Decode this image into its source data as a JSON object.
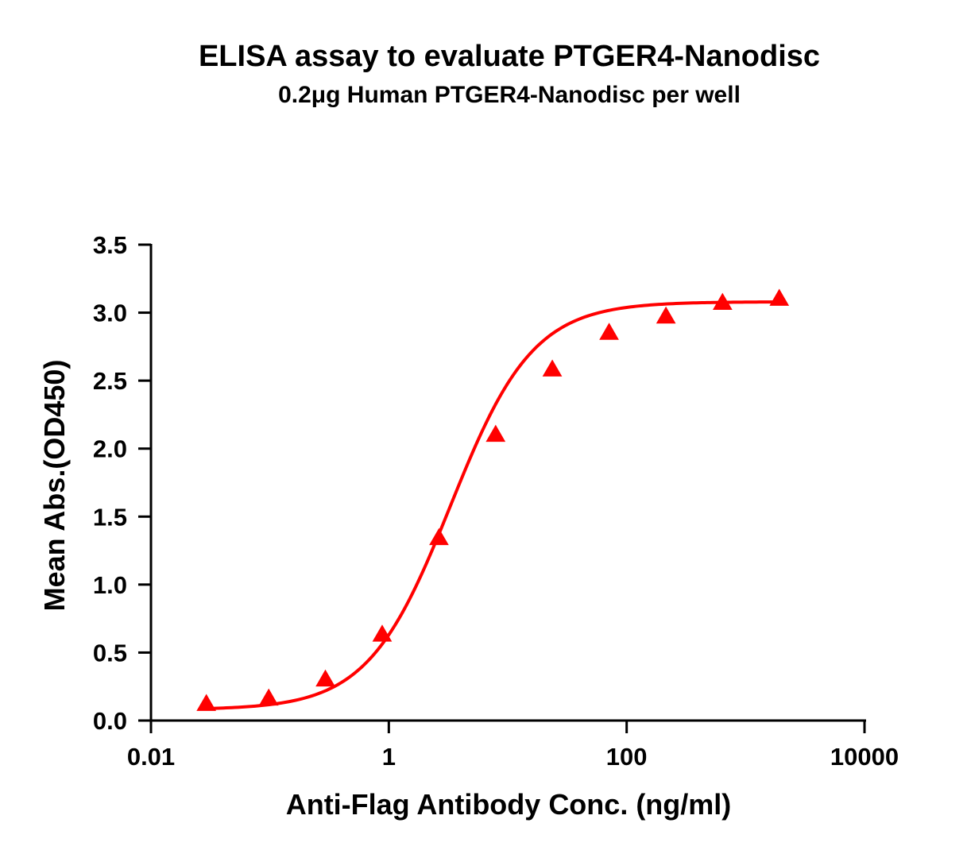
{
  "chart_data": {
    "type": "scatter",
    "title": "ELISA assay to evaluate PTGER4-Nanodisc",
    "subtitle": "0.2μg Human PTGER4-Nanodisc per well",
    "xlabel": "Anti-Flag Antibody Conc. (ng/ml)",
    "ylabel": "Mean Abs.(OD450)",
    "x_scale": "log",
    "xlim": [
      0.01,
      10000
    ],
    "ylim": [
      0,
      3.5
    ],
    "x_ticks": [
      0.01,
      1,
      100,
      10000
    ],
    "x_tick_labels": [
      "0.01",
      "1",
      "100",
      "10000"
    ],
    "y_ticks": [
      0,
      0.5,
      1,
      1.5,
      2,
      2.5,
      3,
      3.5
    ],
    "y_tick_labels": [
      "0.0",
      "0.5",
      "1.0",
      "1.5",
      "2.0",
      "2.5",
      "3.0",
      "3.5"
    ],
    "grid": false,
    "legend": "none",
    "series": [
      {
        "x": [
          0.0292,
          0.0977,
          0.293,
          0.879,
          2.64,
          7.91,
          23.7,
          71.2,
          214,
          640,
          1920
        ],
        "y": [
          0.12,
          0.16,
          0.3,
          0.63,
          1.34,
          2.1,
          2.58,
          2.85,
          2.97,
          3.07,
          3.1
        ],
        "marker": "triangle",
        "color": "#ff0000",
        "fit": "4PL",
        "fit_params": {
          "bottom": 0.08,
          "top": 3.08,
          "ec50": 3.3,
          "hill": 1.25
        }
      }
    ]
  }
}
